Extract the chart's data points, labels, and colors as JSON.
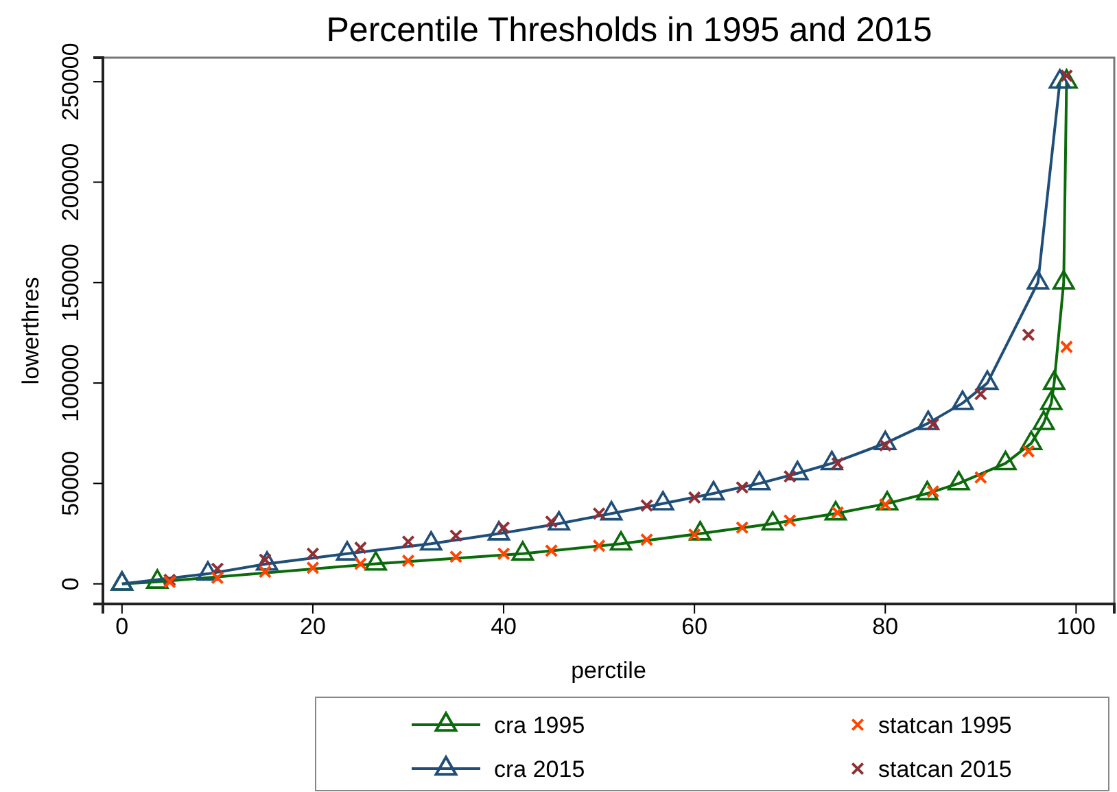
{
  "chart_data": {
    "type": "line",
    "title": "Percentile Thresholds in 1995 and 2015",
    "xlabel": "perctile",
    "ylabel": "lowerthres",
    "xlim": [
      -2,
      104
    ],
    "xticks": [
      0,
      20,
      40,
      60,
      80,
      100
    ],
    "ylim": [
      -10000,
      262000
    ],
    "yticks": [
      0,
      50000,
      100000,
      150000,
      200000,
      250000
    ],
    "grid": false,
    "legend": "bottom",
    "series": [
      {
        "name": "cra 1995",
        "type": "line",
        "marker": "triangle",
        "color": "#0b6b0b",
        "x": [
          0,
          3.7,
          26.6,
          42.0,
          52.3,
          60.6,
          68.2,
          74.8,
          80.2,
          84.4,
          87.7,
          92.6,
          95.3,
          96.6,
          97.4,
          97.7,
          98.7,
          99.0
        ],
        "values": [
          0,
          1000,
          10000,
          15000,
          20000,
          25000,
          30000,
          35000,
          40000,
          45000,
          50000,
          60000,
          70000,
          80000,
          90000,
          100000,
          150000,
          250000
        ]
      },
      {
        "name": "statcan 1995",
        "type": "scatter",
        "marker": "cross",
        "color": "#ff4500",
        "x": [
          5,
          10,
          15,
          20,
          25,
          30,
          35,
          40,
          45,
          50,
          55,
          60,
          65,
          70,
          75,
          80,
          85,
          90,
          95,
          99
        ],
        "values": [
          1000,
          3000,
          6000,
          8000,
          10000,
          11500,
          13500,
          15000,
          16500,
          19000,
          22000,
          24500,
          28000,
          31500,
          35500,
          39500,
          46000,
          53000,
          66000,
          118000
        ]
      },
      {
        "name": "cra 2015",
        "type": "line",
        "marker": "triangle",
        "color": "#1f4e79",
        "x": [
          0,
          9.0,
          15.2,
          23.6,
          32.4,
          39.5,
          45.8,
          51.3,
          56.7,
          62.0,
          66.8,
          70.8,
          74.4,
          80.0,
          84.5,
          88.1,
          90.7,
          96.0,
          98.3
        ],
        "values": [
          0,
          5000,
          10000,
          15000,
          20000,
          25000,
          30000,
          35000,
          40000,
          45000,
          50000,
          55000,
          60000,
          70000,
          80000,
          90000,
          100000,
          150000,
          250000
        ]
      },
      {
        "name": "statcan 2015",
        "type": "scatter",
        "marker": "cross",
        "color": "#903035",
        "x": [
          5,
          10,
          15,
          20,
          25,
          30,
          35,
          40,
          45,
          50,
          55,
          60,
          65,
          70,
          75,
          80,
          85,
          90,
          95,
          99
        ],
        "values": [
          2000,
          7500,
          12000,
          15000,
          18000,
          21000,
          24000,
          28000,
          31000,
          35000,
          39000,
          43000,
          48000,
          53500,
          60000,
          69000,
          79500,
          94500,
          124000,
          253000
        ]
      }
    ]
  }
}
